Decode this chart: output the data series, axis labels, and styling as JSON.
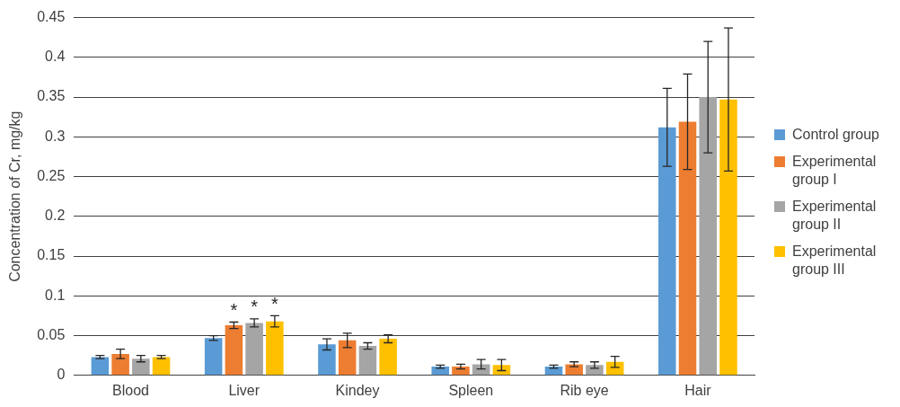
{
  "chart_data": {
    "type": "bar",
    "ylabel": "Concentration of Cr, mg/kg",
    "categories": [
      "Blood",
      "Liver",
      "Kindey",
      "Spleen",
      "Rib eye",
      "Hair"
    ],
    "series": [
      {
        "name": "Control group",
        "color": "#5b9bd5",
        "values": [
          0.023,
          0.047,
          0.039,
          0.011,
          0.011,
          0.312
        ],
        "errors": [
          0.002,
          0.003,
          0.007,
          0.002,
          0.002,
          0.049
        ]
      },
      {
        "name": "Experimental group I",
        "color": "#ed7d31",
        "values": [
          0.027,
          0.063,
          0.044,
          0.011,
          0.014,
          0.319
        ],
        "errors": [
          0.006,
          0.004,
          0.009,
          0.003,
          0.003,
          0.06
        ],
        "value_labels": [
          null,
          "*",
          null,
          null,
          null,
          null
        ]
      },
      {
        "name": "Experimental group II",
        "color": "#a5a5a5",
        "values": [
          0.021,
          0.066,
          0.037,
          0.014,
          0.013,
          0.35
        ],
        "errors": [
          0.004,
          0.005,
          0.004,
          0.006,
          0.004,
          0.07
        ],
        "value_labels": [
          null,
          "*",
          null,
          null,
          null,
          null
        ]
      },
      {
        "name": "Experimental group III",
        "color": "#ffc000",
        "values": [
          0.023,
          0.068,
          0.046,
          0.013,
          0.017,
          0.347
        ],
        "errors": [
          0.002,
          0.007,
          0.005,
          0.007,
          0.007,
          0.09
        ],
        "value_labels": [
          null,
          "*",
          null,
          null,
          null,
          null
        ]
      }
    ],
    "ylim": [
      0,
      0.45
    ],
    "yticks": [
      0,
      0.05,
      0.1,
      0.15,
      0.2,
      0.25,
      0.3,
      0.35,
      0.4,
      0.45
    ],
    "grid": "y",
    "legend": "right"
  }
}
